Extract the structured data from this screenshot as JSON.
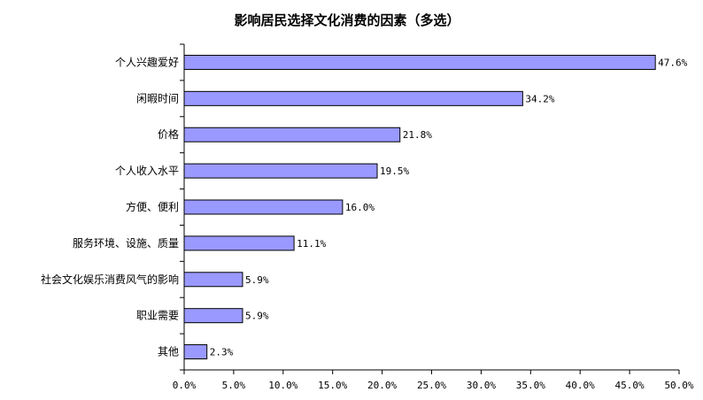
{
  "chart_data": {
    "type": "bar",
    "orientation": "horizontal",
    "title": "影响居民选择文化消费的因素（多选）",
    "categories": [
      "个人兴趣爱好",
      "闲暇时间",
      "价格",
      "个人收入水平",
      "方便、便利",
      "服务环境、设施、质量",
      "社会文化娱乐消费风气的影响",
      "职业需要",
      "其他"
    ],
    "values": [
      47.6,
      34.2,
      21.8,
      19.5,
      16.0,
      11.1,
      5.9,
      5.9,
      2.3
    ],
    "value_labels": [
      "47.6%",
      "34.2%",
      "21.8%",
      "19.5%",
      "16.0%",
      "11.1%",
      "5.9%",
      "5.9%",
      "2.3%"
    ],
    "xlim": [
      0,
      50
    ],
    "x_ticks": [
      0,
      5,
      10,
      15,
      20,
      25,
      30,
      35,
      40,
      45,
      50
    ],
    "x_tick_labels": [
      "0.0%",
      "5.0%",
      "10.0%",
      "15.0%",
      "20.0%",
      "25.0%",
      "30.0%",
      "35.0%",
      "40.0%",
      "45.0%",
      "50.0%"
    ],
    "xlabel": "",
    "ylabel": "",
    "grid": false,
    "colors": {
      "bar_fill": "#9999ff",
      "bar_stroke": "#000000",
      "axis": "#000000"
    }
  }
}
